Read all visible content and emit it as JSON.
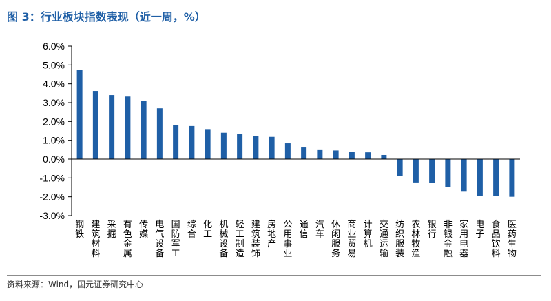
{
  "header": {
    "title": "图 3：行业板块指数表现（近一周，%）"
  },
  "footer": {
    "source": "资料来源：Wind，国元证券研究中心"
  },
  "colors": {
    "accent": "#1f5fa6",
    "bar": "#1f5fa6"
  },
  "chart_data": {
    "type": "bar",
    "title": "图 3：行业板块指数表现（近一周，%）",
    "xlabel": "",
    "ylabel": "",
    "ylim": [
      -3.0,
      6.0
    ],
    "yticks": [
      "6.0%",
      "5.0%",
      "4.0%",
      "3.0%",
      "2.0%",
      "1.0%",
      "0.0%",
      "-1.0%",
      "-2.0%",
      "-3.0%"
    ],
    "ytick_values": [
      6,
      5,
      4,
      3,
      2,
      1,
      0,
      -1,
      -2,
      -3
    ],
    "grid": false,
    "legend": "none",
    "categories": [
      "钢铁",
      "建筑材料",
      "采掘",
      "有色金属",
      "传媒",
      "电气设备",
      "国防军工",
      "综合",
      "化工",
      "机械设备",
      "轻工制造",
      "建筑装饰",
      "房地产",
      "公用事业",
      "通信",
      "汽车",
      "休闲服务",
      "商业贸易",
      "计算机",
      "交通运输",
      "纺织服装",
      "农林牧渔",
      "银行",
      "非银金融",
      "家用电器",
      "电子",
      "食品饮料",
      "医药生物"
    ],
    "values": [
      4.75,
      3.62,
      3.4,
      3.32,
      3.1,
      2.7,
      1.8,
      1.76,
      1.56,
      1.4,
      1.35,
      1.22,
      1.18,
      0.84,
      0.62,
      0.48,
      0.46,
      0.4,
      0.36,
      0.22,
      -0.88,
      -1.24,
      -1.27,
      -1.5,
      -1.73,
      -1.95,
      -1.97,
      -2.0
    ]
  }
}
